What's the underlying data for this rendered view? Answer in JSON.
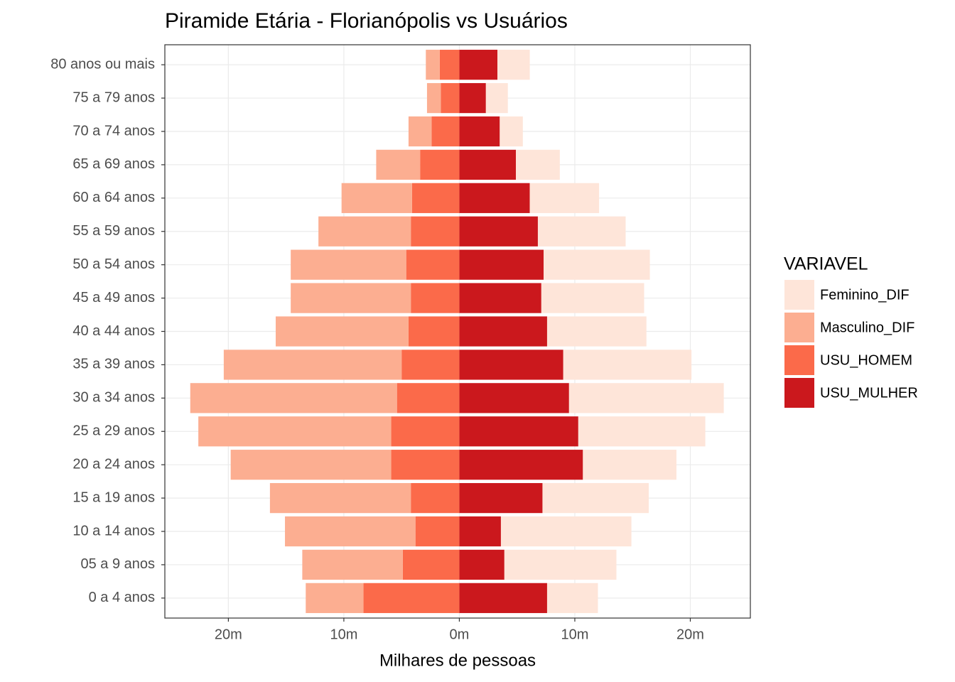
{
  "chart_data": {
    "type": "bar",
    "orientation": "horizontal",
    "stacked": true,
    "title": "Piramide Etária - Florianópolis vs Usuários",
    "x_label": "Milhares de pessoas",
    "legend_title": "VARIAVEL",
    "categories": [
      "0 a 4 anos",
      "05 a 9 anos",
      "10 a 14 anos",
      "15 a 19 anos",
      "20 a 24 anos",
      "25 a 29 anos",
      "30 a 34 anos",
      "35 a 39 anos",
      "40 a 44 anos",
      "45 a 49 anos",
      "50 a 54 anos",
      "55 a 59 anos",
      "60 a 64 anos",
      "65 a 69 anos",
      "70 a 74 anos",
      "75 a 79 anos",
      "80 anos ou mais"
    ],
    "series": [
      {
        "name": "Feminino_DIF",
        "color": "#FEE5D9",
        "values": [
          4.4,
          9.7,
          11.3,
          9.2,
          8.1,
          11.0,
          13.4,
          11.1,
          8.6,
          8.9,
          9.2,
          7.6,
          6.0,
          3.8,
          2.0,
          1.9,
          2.8
        ]
      },
      {
        "name": "Masculino_DIF",
        "color": "#FCAE91",
        "values": [
          -5.0,
          -8.7,
          -11.3,
          -12.2,
          -13.9,
          -16.7,
          -17.9,
          -15.4,
          -11.5,
          -10.4,
          -10.0,
          -8.0,
          -6.1,
          -3.8,
          -2.0,
          -1.2,
          -1.2
        ]
      },
      {
        "name": "USU_HOMEM",
        "color": "#FB6A4A",
        "values": [
          -8.3,
          -4.9,
          -3.8,
          -4.2,
          -5.9,
          -5.9,
          -5.4,
          -5.0,
          -4.4,
          -4.2,
          -4.6,
          -4.2,
          -4.1,
          -3.4,
          -2.4,
          -1.6,
          -1.7
        ]
      },
      {
        "name": "USU_MULHER",
        "color": "#CB181D",
        "values": [
          7.6,
          3.9,
          3.6,
          7.2,
          10.7,
          10.3,
          9.5,
          9.0,
          7.6,
          7.1,
          7.3,
          6.8,
          6.1,
          4.9,
          3.5,
          2.3,
          3.3
        ]
      }
    ],
    "xlim": [
      -25.5,
      25.2
    ],
    "xticks": [
      {
        "value": -20,
        "label": "20m"
      },
      {
        "value": -10,
        "label": "10m"
      },
      {
        "value": 0,
        "label": "0m"
      },
      {
        "value": 10,
        "label": "10m"
      },
      {
        "value": 20,
        "label": "20m"
      }
    ],
    "grid": true
  }
}
